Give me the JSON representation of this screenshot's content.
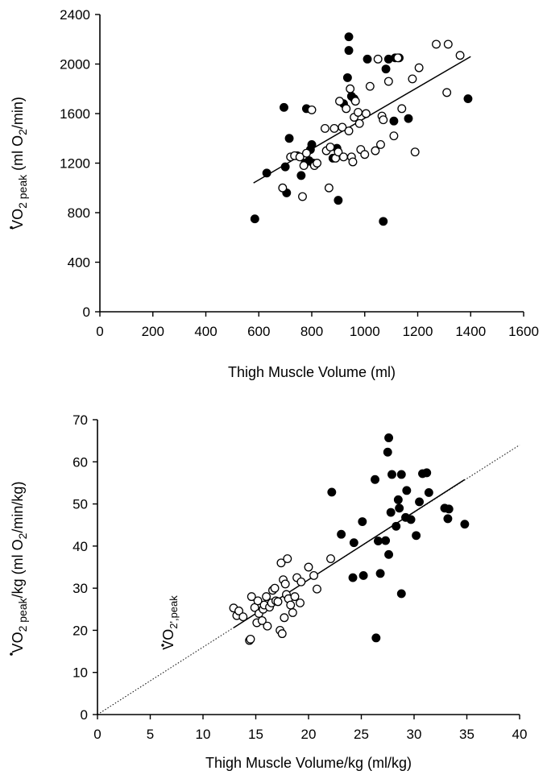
{
  "chart_data": [
    {
      "type": "scatter",
      "xlabel": "Thigh Muscle Volume (ml)",
      "ylabel": {
        "main": "VO",
        "sub": "2 peak",
        "rest_pre": " (ml O",
        "rest_sub": "2",
        "rest_post": "/min)"
      },
      "xlim": [
        0,
        1600
      ],
      "ylim": [
        0,
        2400
      ],
      "xticks": [
        "0",
        "200",
        "400",
        "600",
        "800",
        "1000",
        "1200",
        "1400",
        "1600"
      ],
      "yticks": [
        "0",
        "400",
        "800",
        "1200",
        "1600",
        "2000",
        "2400"
      ],
      "grid": false,
      "series": [
        {
          "marker": "filled-circle",
          "points": [
            [
              585,
              750
            ],
            [
              630,
              1120
            ],
            [
              695,
              1650
            ],
            [
              700,
              1170
            ],
            [
              705,
              960
            ],
            [
              715,
              1400
            ],
            [
              745,
              1260
            ],
            [
              760,
              1100
            ],
            [
              775,
              1200
            ],
            [
              780,
              1640
            ],
            [
              790,
              1220
            ],
            [
              795,
              1310
            ],
            [
              800,
              1350
            ],
            [
              805,
              1200
            ],
            [
              880,
              1240
            ],
            [
              895,
              1320
            ],
            [
              900,
              900
            ],
            [
              920,
              1680
            ],
            [
              935,
              1890
            ],
            [
              940,
              2220
            ],
            [
              940,
              2110
            ],
            [
              950,
              1740
            ],
            [
              960,
              1720
            ],
            [
              1010,
              2040
            ],
            [
              1070,
              730
            ],
            [
              1080,
              1960
            ],
            [
              1090,
              2040
            ],
            [
              1110,
              1540
            ],
            [
              1115,
              2050
            ],
            [
              1130,
              2050
            ],
            [
              1165,
              1560
            ],
            [
              1390,
              1720
            ]
          ]
        },
        {
          "marker": "open-circle",
          "points": [
            [
              690,
              1000
            ],
            [
              720,
              1250
            ],
            [
              735,
              1260
            ],
            [
              755,
              1250
            ],
            [
              765,
              930
            ],
            [
              770,
              1180
            ],
            [
              780,
              1280
            ],
            [
              800,
              1630
            ],
            [
              810,
              1180
            ],
            [
              820,
              1200
            ],
            [
              850,
              1480
            ],
            [
              855,
              1300
            ],
            [
              865,
              1000
            ],
            [
              870,
              1330
            ],
            [
              885,
              1480
            ],
            [
              890,
              1240
            ],
            [
              900,
              1290
            ],
            [
              905,
              1700
            ],
            [
              915,
              1490
            ],
            [
              920,
              1250
            ],
            [
              930,
              1640
            ],
            [
              940,
              1460
            ],
            [
              945,
              1800
            ],
            [
              950,
              1250
            ],
            [
              955,
              1210
            ],
            [
              960,
              1570
            ],
            [
              965,
              1700
            ],
            [
              975,
              1610
            ],
            [
              980,
              1520
            ],
            [
              985,
              1310
            ],
            [
              1000,
              1270
            ],
            [
              1005,
              1600
            ],
            [
              1020,
              1820
            ],
            [
              1040,
              1300
            ],
            [
              1050,
              2040
            ],
            [
              1060,
              1350
            ],
            [
              1065,
              1580
            ],
            [
              1070,
              1550
            ],
            [
              1090,
              1860
            ],
            [
              1110,
              1420
            ],
            [
              1125,
              2050
            ],
            [
              1140,
              1640
            ],
            [
              1180,
              1880
            ],
            [
              1190,
              1290
            ],
            [
              1205,
              1970
            ],
            [
              1270,
              2160
            ],
            [
              1310,
              1770
            ],
            [
              1315,
              2160
            ],
            [
              1360,
              2070
            ]
          ]
        }
      ],
      "fit_line": {
        "x": [
          580,
          1400
        ],
        "y": [
          1040,
          2060
        ],
        "style": "solid"
      }
    },
    {
      "type": "scatter",
      "xlabel": "Thigh Muscle Volume/kg (ml/kg)",
      "ylabel": {
        "main": "VO",
        "sub": "2 peak",
        "rest_pre": "/kg (ml O",
        "rest_sub": "2",
        "rest_post": "/min/kg)"
      },
      "annotation": {
        "main": "VO",
        "sub": "2',peak"
      },
      "xlim": [
        0,
        40
      ],
      "ylim": [
        0,
        70
      ],
      "xticks": [
        "0",
        "5",
        "10",
        "15",
        "20",
        "25",
        "30",
        "35",
        "40"
      ],
      "yticks": [
        "0",
        "10",
        "20",
        "30",
        "40",
        "50",
        "60",
        "70"
      ],
      "grid": false,
      "series": [
        {
          "marker": "filled-circle",
          "points": [
            [
              22.2,
              52.8
            ],
            [
              23.1,
              42.8
            ],
            [
              24.2,
              32.5
            ],
            [
              24.3,
              40.8
            ],
            [
              25.1,
              45.8
            ],
            [
              25.2,
              33.0
            ],
            [
              26.3,
              55.8
            ],
            [
              26.4,
              18.2
            ],
            [
              26.6,
              41.2
            ],
            [
              26.8,
              33.5
            ],
            [
              27.3,
              41.3
            ],
            [
              27.5,
              62.3
            ],
            [
              27.6,
              65.7
            ],
            [
              27.6,
              38.0
            ],
            [
              27.8,
              48.0
            ],
            [
              27.9,
              57.0
            ],
            [
              28.3,
              44.7
            ],
            [
              28.5,
              51.0
            ],
            [
              28.6,
              49.0
            ],
            [
              28.8,
              57.0
            ],
            [
              28.8,
              28.7
            ],
            [
              29.2,
              46.8
            ],
            [
              29.3,
              53.2
            ],
            [
              29.7,
              46.3
            ],
            [
              30.2,
              42.5
            ],
            [
              30.5,
              50.5
            ],
            [
              30.8,
              57.2
            ],
            [
              31.2,
              57.4
            ],
            [
              31.4,
              52.7
            ],
            [
              32.9,
              49.0
            ],
            [
              33.2,
              46.5
            ],
            [
              33.3,
              48.8
            ],
            [
              34.8,
              45.2
            ]
          ]
        },
        {
          "marker": "open-circle",
          "points": [
            [
              12.9,
              25.3
            ],
            [
              13.2,
              23.5
            ],
            [
              13.4,
              24.6
            ],
            [
              13.8,
              23.2
            ],
            [
              14.4,
              17.6
            ],
            [
              14.5,
              17.9
            ],
            [
              14.6,
              28.0
            ],
            [
              14.9,
              25.4
            ],
            [
              15.1,
              21.8
            ],
            [
              15.2,
              27.0
            ],
            [
              15.3,
              24.0
            ],
            [
              15.6,
              22.3
            ],
            [
              15.7,
              25.0
            ],
            [
              15.8,
              26.0
            ],
            [
              16.0,
              28.0
            ],
            [
              16.1,
              21.0
            ],
            [
              16.3,
              25.5
            ],
            [
              16.5,
              26.5
            ],
            [
              16.6,
              29.5
            ],
            [
              16.8,
              30.0
            ],
            [
              16.9,
              27.0
            ],
            [
              17.1,
              26.8
            ],
            [
              17.3,
              20.0
            ],
            [
              17.4,
              36.0
            ],
            [
              17.5,
              19.2
            ],
            [
              17.6,
              32.0
            ],
            [
              17.7,
              23.0
            ],
            [
              17.8,
              31.0
            ],
            [
              17.9,
              28.5
            ],
            [
              18.0,
              37.0
            ],
            [
              18.1,
              27.5
            ],
            [
              18.3,
              26.0
            ],
            [
              18.5,
              24.2
            ],
            [
              18.7,
              28.0
            ],
            [
              18.9,
              32.5
            ],
            [
              19.2,
              26.5
            ],
            [
              19.3,
              31.5
            ],
            [
              20.0,
              35.0
            ],
            [
              20.5,
              33.0
            ],
            [
              20.8,
              29.8
            ],
            [
              22.1,
              37.0
            ]
          ]
        }
      ],
      "fit_line": {
        "x": [
          12.9,
          34.8
        ],
        "y": [
          20.6,
          55.8
        ],
        "style": "solid"
      },
      "extrapolation_line": {
        "x": [
          0,
          40
        ],
        "y": [
          0,
          64
        ],
        "style": "dotted"
      }
    }
  ]
}
